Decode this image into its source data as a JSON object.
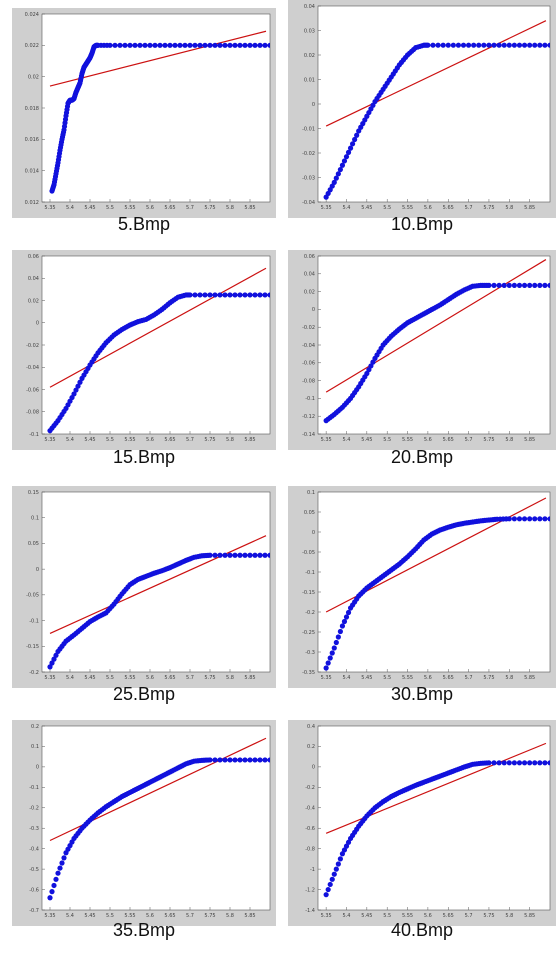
{
  "colors": {
    "frame_bg": "#cfcfcf",
    "plot_bg": "#ffffff",
    "points": "#1111dd",
    "fit_line": "#cc1111",
    "axis": "#555555"
  },
  "chart_data": [
    {
      "type": "scatter",
      "caption": "5.Bmp",
      "xlim": [
        5.33,
        5.9
      ],
      "ylim": [
        0.012,
        0.024
      ],
      "xticks": [
        "5.35",
        "5.4",
        "5.45",
        "5.5",
        "5.55",
        "5.6",
        "5.65",
        "5.7",
        "5.75",
        "5.8",
        "5.85"
      ],
      "yticks": [
        "0.012",
        "0.014",
        "0.016",
        "0.018",
        "0.02",
        "0.022",
        "0.024"
      ],
      "series": [
        {
          "kind": "points",
          "x": [
            5.355,
            5.36,
            5.365,
            5.37,
            5.375,
            5.38,
            5.385,
            5.39,
            5.395,
            5.4,
            5.405,
            5.41,
            5.415,
            5.42,
            5.425,
            5.43,
            5.435,
            5.44,
            5.445,
            5.45,
            5.455,
            5.46,
            5.465,
            5.47,
            5.5,
            5.55,
            5.6,
            5.65,
            5.7,
            5.75,
            5.8,
            5.85,
            5.9
          ],
          "y": [
            0.0127,
            0.0131,
            0.0138,
            0.0145,
            0.0153,
            0.016,
            0.0166,
            0.0175,
            0.0183,
            0.0185,
            0.0185,
            0.0186,
            0.019,
            0.0193,
            0.0196,
            0.0202,
            0.0206,
            0.0208,
            0.021,
            0.0212,
            0.0215,
            0.0219,
            0.022,
            0.022,
            0.022,
            0.022,
            0.022,
            0.022,
            0.022,
            0.022,
            0.022,
            0.022,
            0.022
          ]
        },
        {
          "kind": "line",
          "x": [
            5.35,
            5.89
          ],
          "y": [
            0.0194,
            0.0229
          ]
        }
      ]
    },
    {
      "type": "scatter",
      "caption": "10.Bmp",
      "xlim": [
        5.33,
        5.9
      ],
      "ylim": [
        -0.04,
        0.04
      ],
      "xticks": [
        "5.35",
        "5.4",
        "5.45",
        "5.5",
        "5.55",
        "5.6",
        "5.65",
        "5.7",
        "5.75",
        "5.8",
        "5.85"
      ],
      "yticks": [
        "-0.04",
        "-0.03",
        "-0.02",
        "-0.01",
        "0",
        "0.01",
        "0.02",
        "0.03",
        "0.04"
      ],
      "series": [
        {
          "kind": "points",
          "x": [
            5.35,
            5.37,
            5.39,
            5.41,
            5.43,
            5.45,
            5.47,
            5.49,
            5.51,
            5.53,
            5.55,
            5.57,
            5.59,
            5.6,
            5.65,
            5.7,
            5.75,
            5.8,
            5.85,
            5.9
          ],
          "y": [
            -0.038,
            -0.032,
            -0.025,
            -0.018,
            -0.011,
            -0.005,
            0.001,
            0.006,
            0.011,
            0.016,
            0.02,
            0.023,
            0.024,
            0.024,
            0.024,
            0.024,
            0.024,
            0.024,
            0.024,
            0.024
          ]
        },
        {
          "kind": "line",
          "x": [
            5.35,
            5.89
          ],
          "y": [
            -0.009,
            0.034
          ]
        }
      ]
    },
    {
      "type": "scatter",
      "caption": "15.Bmp",
      "xlim": [
        5.33,
        5.9
      ],
      "ylim": [
        -0.1,
        0.06
      ],
      "xticks": [
        "5.35",
        "5.4",
        "5.45",
        "5.5",
        "5.55",
        "5.6",
        "5.65",
        "5.7",
        "5.75",
        "5.8",
        "5.85"
      ],
      "yticks": [
        "-0.1",
        "-0.08",
        "-0.06",
        "-0.04",
        "-0.02",
        "0",
        "0.02",
        "0.04",
        "0.06"
      ],
      "series": [
        {
          "kind": "points",
          "x": [
            5.35,
            5.37,
            5.39,
            5.41,
            5.43,
            5.45,
            5.47,
            5.49,
            5.51,
            5.53,
            5.55,
            5.57,
            5.59,
            5.61,
            5.63,
            5.65,
            5.67,
            5.69,
            5.7,
            5.75,
            5.8,
            5.85,
            5.9
          ],
          "y": [
            -0.097,
            -0.088,
            -0.077,
            -0.064,
            -0.05,
            -0.038,
            -0.027,
            -0.018,
            -0.011,
            -0.006,
            -0.002,
            0.001,
            0.003,
            0.007,
            0.012,
            0.018,
            0.023,
            0.025,
            0.025,
            0.025,
            0.025,
            0.025,
            0.025
          ]
        },
        {
          "kind": "line",
          "x": [
            5.35,
            5.89
          ],
          "y": [
            -0.058,
            0.049
          ]
        }
      ]
    },
    {
      "type": "scatter",
      "caption": "20.Bmp",
      "xlim": [
        5.33,
        5.9
      ],
      "ylim": [
        -0.14,
        0.06
      ],
      "xticks": [
        "5.35",
        "5.4",
        "5.45",
        "5.5",
        "5.55",
        "5.6",
        "5.65",
        "5.7",
        "5.75",
        "5.8",
        "5.85"
      ],
      "yticks": [
        "-0.14",
        "-0.12",
        "-0.1",
        "-0.08",
        "-0.06",
        "-0.04",
        "-0.02",
        "0",
        "0.02",
        "0.04",
        "0.06"
      ],
      "series": [
        {
          "kind": "points",
          "x": [
            5.35,
            5.37,
            5.39,
            5.41,
            5.43,
            5.45,
            5.47,
            5.49,
            5.51,
            5.53,
            5.55,
            5.57,
            5.59,
            5.61,
            5.63,
            5.65,
            5.67,
            5.69,
            5.71,
            5.73,
            5.75,
            5.8,
            5.85,
            5.9
          ],
          "y": [
            -0.125,
            -0.118,
            -0.11,
            -0.1,
            -0.087,
            -0.072,
            -0.055,
            -0.04,
            -0.03,
            -0.022,
            -0.015,
            -0.01,
            -0.005,
            0.0,
            0.005,
            0.011,
            0.017,
            0.022,
            0.026,
            0.027,
            0.027,
            0.027,
            0.027,
            0.027
          ]
        },
        {
          "kind": "line",
          "x": [
            5.35,
            5.89
          ],
          "y": [
            -0.093,
            0.056
          ]
        }
      ]
    },
    {
      "type": "scatter",
      "caption": "25.Bmp",
      "xlim": [
        5.33,
        5.9
      ],
      "ylim": [
        -0.2,
        0.15
      ],
      "xticks": [
        "5.35",
        "5.4",
        "5.45",
        "5.5",
        "5.55",
        "5.6",
        "5.65",
        "5.7",
        "5.75",
        "5.8",
        "5.85"
      ],
      "yticks": [
        "-0.2",
        "-0.15",
        "-0.1",
        "-0.05",
        "0",
        "0.05",
        "0.1",
        "0.15"
      ],
      "series": [
        {
          "kind": "points",
          "x": [
            5.35,
            5.37,
            5.39,
            5.41,
            5.43,
            5.45,
            5.47,
            5.49,
            5.51,
            5.53,
            5.55,
            5.57,
            5.59,
            5.61,
            5.63,
            5.65,
            5.67,
            5.69,
            5.71,
            5.73,
            5.75,
            5.8,
            5.85,
            5.9
          ],
          "y": [
            -0.19,
            -0.16,
            -0.14,
            -0.128,
            -0.115,
            -0.102,
            -0.093,
            -0.085,
            -0.068,
            -0.048,
            -0.03,
            -0.02,
            -0.014,
            -0.008,
            -0.003,
            0.003,
            0.01,
            0.017,
            0.023,
            0.026,
            0.027,
            0.027,
            0.027,
            0.027
          ]
        },
        {
          "kind": "line",
          "x": [
            5.35,
            5.89
          ],
          "y": [
            -0.125,
            0.065
          ]
        }
      ]
    },
    {
      "type": "scatter",
      "caption": "30.Bmp",
      "xlim": [
        5.33,
        5.9
      ],
      "ylim": [
        -0.35,
        0.1
      ],
      "xticks": [
        "5.35",
        "5.4",
        "5.45",
        "5.5",
        "5.55",
        "5.6",
        "5.65",
        "5.7",
        "5.75",
        "5.8",
        "5.85"
      ],
      "yticks": [
        "-0.35",
        "-0.3",
        "-0.25",
        "-0.2",
        "-0.15",
        "-0.1",
        "-0.05",
        "0",
        "0.05",
        "0.1"
      ],
      "series": [
        {
          "kind": "points",
          "x": [
            5.35,
            5.37,
            5.39,
            5.41,
            5.43,
            5.45,
            5.47,
            5.49,
            5.51,
            5.53,
            5.55,
            5.57,
            5.59,
            5.61,
            5.63,
            5.65,
            5.67,
            5.69,
            5.71,
            5.73,
            5.75,
            5.77,
            5.8,
            5.85,
            5.9
          ],
          "y": [
            -0.34,
            -0.29,
            -0.235,
            -0.19,
            -0.16,
            -0.14,
            -0.125,
            -0.11,
            -0.095,
            -0.08,
            -0.062,
            -0.042,
            -0.02,
            -0.005,
            0.005,
            0.012,
            0.018,
            0.022,
            0.025,
            0.028,
            0.03,
            0.032,
            0.033,
            0.033,
            0.033
          ]
        },
        {
          "kind": "line",
          "x": [
            5.35,
            5.89
          ],
          "y": [
            -0.2,
            0.085
          ]
        }
      ]
    },
    {
      "type": "scatter",
      "caption": "35.Bmp",
      "xlim": [
        5.33,
        5.9
      ],
      "ylim": [
        -0.7,
        0.2
      ],
      "xticks": [
        "5.35",
        "5.4",
        "5.45",
        "5.5",
        "5.55",
        "5.6",
        "5.65",
        "5.7",
        "5.75",
        "5.8",
        "5.85"
      ],
      "yticks": [
        "-0.7",
        "-0.6",
        "-0.5",
        "-0.4",
        "-0.3",
        "-0.2",
        "-0.1",
        "0",
        "0.1",
        "0.2"
      ],
      "series": [
        {
          "kind": "points",
          "x": [
            5.35,
            5.37,
            5.39,
            5.41,
            5.43,
            5.45,
            5.47,
            5.49,
            5.51,
            5.53,
            5.55,
            5.57,
            5.59,
            5.61,
            5.63,
            5.65,
            5.67,
            5.69,
            5.71,
            5.73,
            5.75,
            5.8,
            5.85,
            5.9
          ],
          "y": [
            -0.64,
            -0.52,
            -0.42,
            -0.35,
            -0.3,
            -0.26,
            -0.225,
            -0.195,
            -0.17,
            -0.145,
            -0.125,
            -0.105,
            -0.085,
            -0.065,
            -0.045,
            -0.025,
            -0.005,
            0.015,
            0.028,
            0.032,
            0.034,
            0.034,
            0.034,
            0.034
          ]
        },
        {
          "kind": "line",
          "x": [
            5.35,
            5.89
          ],
          "y": [
            -0.36,
            0.14
          ]
        }
      ]
    },
    {
      "type": "scatter",
      "caption": "40.Bmp",
      "xlim": [
        5.33,
        5.9
      ],
      "ylim": [
        -1.4,
        0.4
      ],
      "xticks": [
        "5.35",
        "5.4",
        "5.45",
        "5.5",
        "5.55",
        "5.6",
        "5.65",
        "5.7",
        "5.75",
        "5.8",
        "5.85"
      ],
      "yticks": [
        "-1.4",
        "-1.2",
        "-1",
        "-0.8",
        "-0.6",
        "-0.4",
        "-0.2",
        "0",
        "0.2",
        "0.4"
      ],
      "series": [
        {
          "kind": "points",
          "x": [
            5.35,
            5.37,
            5.39,
            5.41,
            5.43,
            5.45,
            5.47,
            5.49,
            5.51,
            5.53,
            5.55,
            5.57,
            5.59,
            5.61,
            5.63,
            5.65,
            5.67,
            5.69,
            5.71,
            5.73,
            5.75,
            5.8,
            5.85,
            5.9
          ],
          "y": [
            -1.25,
            -1.05,
            -0.85,
            -0.7,
            -0.58,
            -0.48,
            -0.4,
            -0.34,
            -0.29,
            -0.25,
            -0.215,
            -0.18,
            -0.15,
            -0.12,
            -0.09,
            -0.06,
            -0.03,
            0.0,
            0.025,
            0.035,
            0.04,
            0.04,
            0.04,
            0.04
          ]
        },
        {
          "kind": "line",
          "x": [
            5.35,
            5.89
          ],
          "y": [
            -0.65,
            0.23
          ]
        }
      ]
    }
  ]
}
